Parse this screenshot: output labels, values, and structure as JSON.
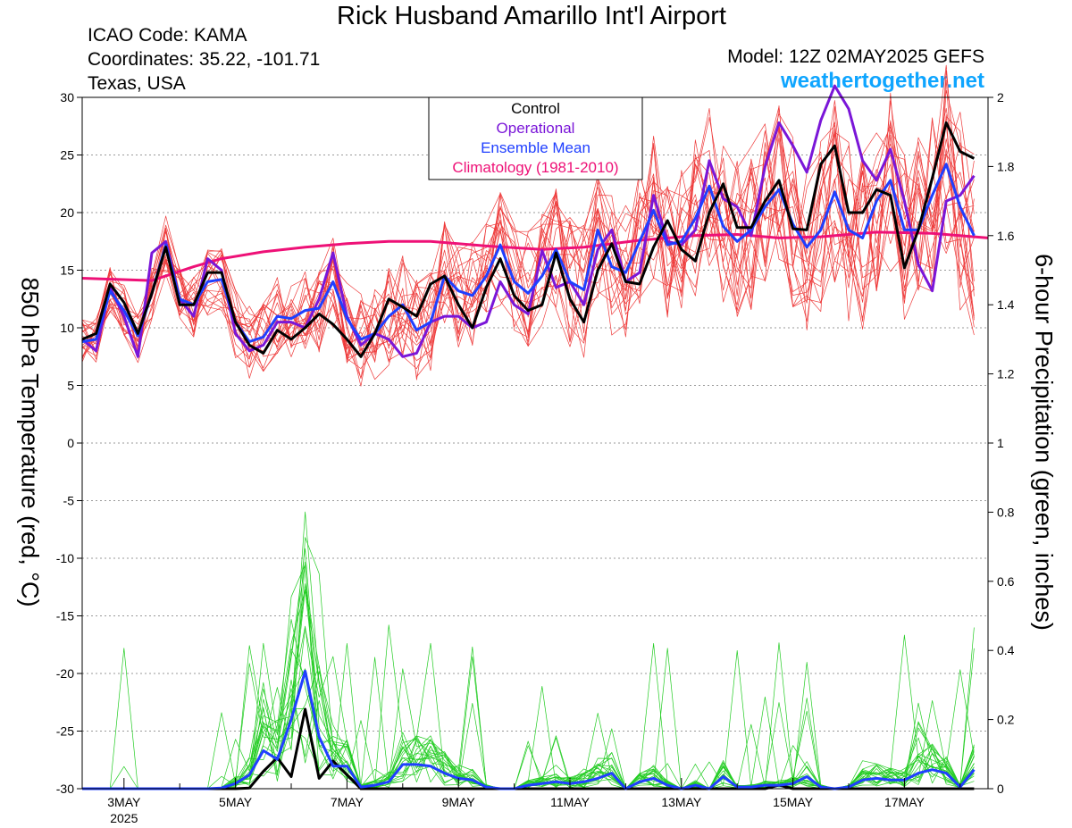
{
  "header": {
    "title": "Rick Husband Amarillo Int'l Airport",
    "icao": "ICAO Code: KAMA",
    "coordinates": "Coordinates: 35.22, -101.71",
    "region": "Texas, USA",
    "model": "Model: 12Z 02MAY2025 GEFS",
    "site": "weathertogether.net"
  },
  "colors": {
    "members_temp": "#ee3b3b",
    "members_precip": "#22cc22",
    "control": "#000000",
    "operational": "#7a16d8",
    "ensemble_mean": "#1f3fff",
    "climatology": "#ee1177",
    "site": "#0ea5ff"
  },
  "chart_data": {
    "type": "line",
    "title": "Rick Husband Amarillo Int'l Airport",
    "ylabel": "850 hPa Temperature (red, °C)",
    "y2label": "6-hour Precipitation (green, inches)",
    "ylim": [
      -30,
      30
    ],
    "y2lim": [
      0,
      2
    ],
    "yticks": [
      30,
      25,
      20,
      15,
      10,
      5,
      0,
      -5,
      -10,
      -15,
      -20,
      -25,
      -30
    ],
    "y2ticks": [
      2,
      1.8,
      1.6,
      1.4,
      1.2,
      1,
      0.8,
      0.6,
      0.4,
      0.2,
      0
    ],
    "xlim": [
      0.25,
      16.5
    ],
    "x_ticks": [
      {
        "x": 1,
        "label": "3MAY",
        "sublabel": "2025"
      },
      {
        "x": 3,
        "label": "5MAY"
      },
      {
        "x": 5,
        "label": "7MAY"
      },
      {
        "x": 7,
        "label": "9MAY"
      },
      {
        "x": 9,
        "label": "11MAY"
      },
      {
        "x": 11,
        "label": "13MAY"
      },
      {
        "x": 13,
        "label": "15MAY"
      },
      {
        "x": 15,
        "label": "17MAY"
      }
    ],
    "x_note": "x = days after 00Z 2 May 2025; series sampled every 6 hours from x = 0.25",
    "legend": {
      "position": "top-center",
      "entries": [
        {
          "label": "Control",
          "color": "#000000"
        },
        {
          "label": "Operational",
          "color": "#7a16d8"
        },
        {
          "label": "Ensemble Mean",
          "color": "#1f3fff"
        },
        {
          "label": "Climatology (1981-2010)",
          "color": "#ee1177"
        }
      ]
    },
    "grid": "horizontal dotted",
    "series": [
      {
        "name": "Control",
        "axis": "temp",
        "values": [
          9,
          9.5,
          13.8,
          12.2,
          9.5,
          13,
          17,
          12,
          12,
          14.8,
          14.8,
          10.5,
          8.5,
          7.8,
          9.8,
          9,
          10,
          11.2,
          10.3,
          9,
          7.5,
          9.5,
          12.5,
          11.8,
          11,
          13.8,
          14.5,
          12,
          10,
          13.5,
          16,
          12.8,
          11.5,
          12,
          16.5,
          12.5,
          10.5,
          15,
          17.3,
          14,
          13.8,
          17,
          19.3,
          16.8,
          15.8,
          20,
          22.5,
          18.7,
          18.7,
          21,
          22.8,
          18.6,
          18.5,
          24.2,
          25.8,
          20,
          20,
          22,
          21.5,
          15.2,
          18.5,
          23,
          27.8,
          25.3,
          24.7
        ]
      },
      {
        "name": "Operational",
        "axis": "temp",
        "values": [
          9,
          8,
          13.5,
          11,
          7.5,
          16.5,
          17.5,
          12.5,
          11,
          16,
          15,
          9.5,
          8,
          8.5,
          10.5,
          10.5,
          10,
          12.5,
          16.5,
          11,
          8.5,
          9.5,
          9,
          7.5,
          7.8,
          10.5,
          11,
          11,
          10,
          10.5,
          14,
          12,
          11.2,
          16.7,
          13.5,
          14,
          12,
          16.8,
          18.5,
          14,
          14.8,
          21.5,
          17.5,
          17.2,
          18.5,
          24.5,
          21.2,
          20.5,
          18,
          24,
          27.8,
          25.8,
          23.5,
          28,
          31,
          29,
          24.5,
          22.8,
          25.5,
          21,
          15.5,
          13.2,
          21,
          21.5,
          23.2
        ]
      },
      {
        "name": "Ensemble Mean",
        "axis": "temp",
        "values": [
          8.8,
          9,
          13.2,
          11.5,
          9.3,
          13,
          17.2,
          12.5,
          12,
          14,
          14.2,
          10.5,
          8.8,
          9.2,
          11,
          10.8,
          11.5,
          11.7,
          14,
          10.8,
          9,
          9.5,
          11,
          12,
          9.8,
          10.5,
          14.5,
          13.2,
          12.8,
          14.5,
          17.2,
          14,
          13,
          14.5,
          16.8,
          14,
          13.3,
          18.5,
          15.3,
          14.8,
          17.5,
          20.2,
          17.2,
          17.5,
          19.5,
          22.3,
          18.8,
          17.5,
          18.5,
          20.5,
          22,
          19,
          17,
          18.5,
          21.8,
          18.5,
          17.8,
          21,
          22.8,
          18.5,
          18.5,
          21.5,
          24.2,
          20.5,
          18
        ]
      },
      {
        "name": "Climatology (1981-2010)",
        "axis": "temp",
        "x": [
          0.25,
          1.5,
          2.25,
          2.75,
          3.5,
          4.25,
          5,
          5.75,
          6.5,
          7.5,
          8.5,
          9.25,
          10.25,
          11.25,
          12,
          12.75,
          13.5,
          14.5,
          15.5,
          16.5
        ],
        "values": [
          14.3,
          14.1,
          15.3,
          16,
          16.6,
          17,
          17.3,
          17.5,
          17.5,
          17.1,
          16.8,
          17,
          17.6,
          18,
          18.1,
          17.8,
          17.9,
          18.3,
          18.2,
          17.8
        ]
      },
      {
        "name": "Control",
        "axis": "precip",
        "values": [
          0,
          0,
          0,
          0,
          0,
          0,
          0,
          0,
          0,
          0,
          0,
          0,
          0.002,
          0.05,
          0.09,
          0.035,
          0.23,
          0.03,
          0.08,
          0.04,
          0,
          0,
          0,
          0,
          0,
          0,
          0,
          0,
          0,
          0,
          0,
          0,
          0,
          0,
          0,
          0,
          0,
          0,
          0,
          0,
          0,
          0,
          0,
          0,
          0,
          0,
          0,
          0,
          0,
          0,
          0.01,
          0,
          0,
          0,
          0,
          0,
          0,
          0,
          0,
          0,
          0,
          0,
          0,
          0,
          0
        ]
      },
      {
        "name": "Ensemble Mean",
        "axis": "precip",
        "values": [
          0,
          0,
          0,
          0,
          0,
          0,
          0,
          0,
          0,
          0,
          0.002,
          0.015,
          0.04,
          0.11,
          0.085,
          0.2,
          0.34,
          0.15,
          0.065,
          0.065,
          0.005,
          0.01,
          0.02,
          0.07,
          0.07,
          0.065,
          0.045,
          0.03,
          0.025,
          0.005,
          0,
          0,
          0.01,
          0.015,
          0.02,
          0.015,
          0.02,
          0.03,
          0.045,
          0,
          0.02,
          0.03,
          0.01,
          0,
          0.01,
          0,
          0.035,
          0.005,
          0.005,
          0.01,
          0.01,
          0.015,
          0.035,
          0.005,
          0,
          0.005,
          0.025,
          0.03,
          0.025,
          0.025,
          0.045,
          0.055,
          0.045,
          0.005,
          0.055
        ]
      }
    ]
  }
}
